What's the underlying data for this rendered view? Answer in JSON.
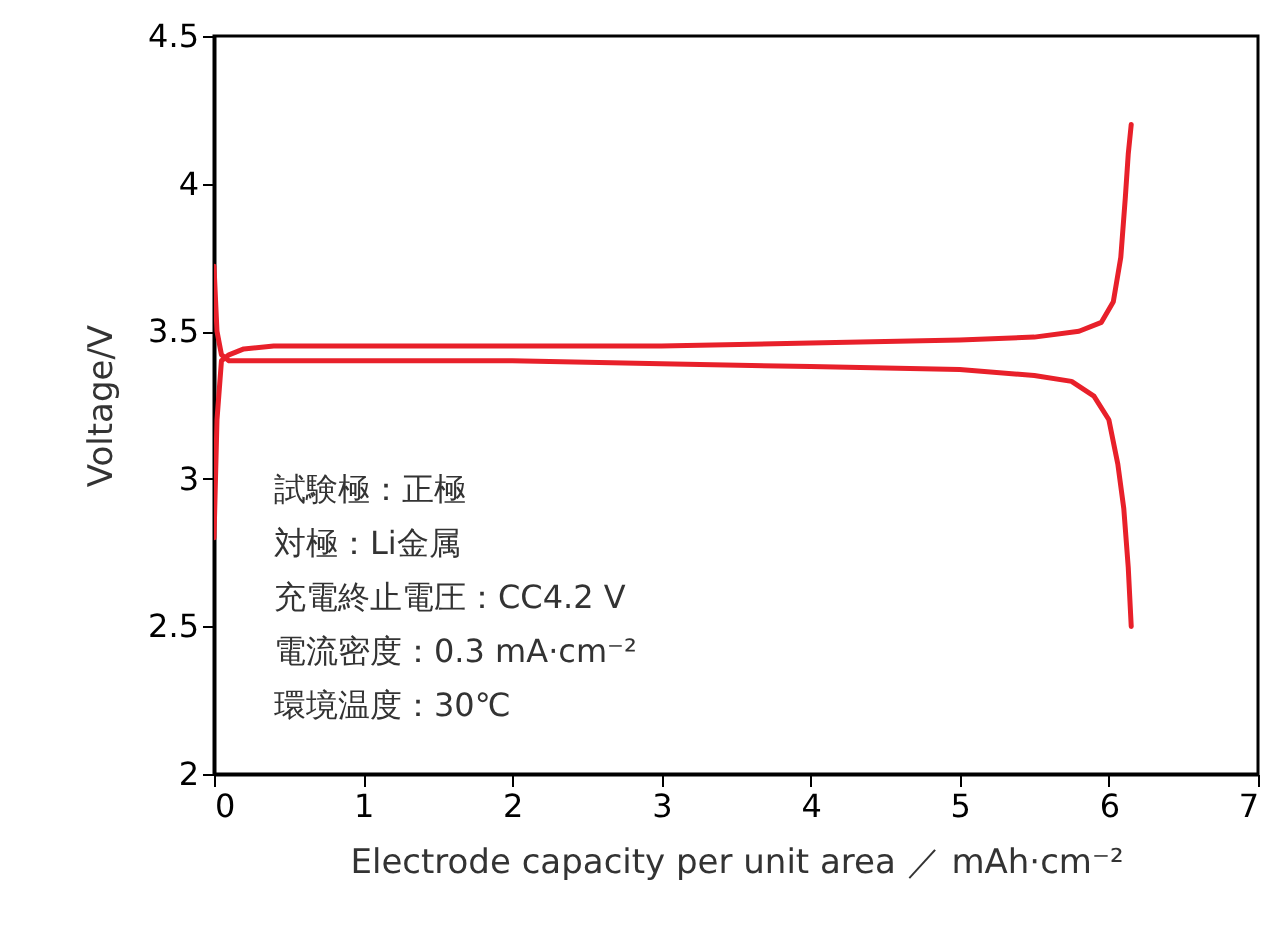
{
  "chart_data": {
    "type": "line",
    "xlabel": "Electrode capacity per unit area ／ mAh·cm⁻²",
    "ylabel": "Voltage/V",
    "xlim": [
      0,
      7
    ],
    "xticks": [
      0,
      1,
      2,
      3,
      4,
      5,
      6,
      7
    ],
    "ylim": [
      2,
      4.5
    ],
    "yticks": [
      2,
      2.5,
      3,
      3.5,
      4,
      4.5
    ],
    "grid": false,
    "line_style": "solid",
    "marker": "none",
    "series": [
      {
        "color": "#e8202a",
        "x": [
          0,
          0.02,
          0.05,
          0.1,
          0.2,
          0.4,
          1,
          2,
          3,
          4,
          5,
          5.5,
          5.8,
          5.95,
          6.03,
          6.08,
          6.11,
          6.13,
          6.15
        ],
        "values": [
          2.8,
          3.2,
          3.4,
          3.42,
          3.44,
          3.45,
          3.45,
          3.45,
          3.45,
          3.46,
          3.47,
          3.48,
          3.5,
          3.53,
          3.6,
          3.75,
          3.95,
          4.1,
          4.2
        ]
      },
      {
        "color": "#e8202a",
        "x": [
          0,
          0.02,
          0.05,
          0.1,
          0.3,
          1,
          2,
          3,
          4,
          5,
          5.5,
          5.75,
          5.9,
          6.0,
          6.06,
          6.1,
          6.13,
          6.15
        ],
        "values": [
          3.72,
          3.5,
          3.42,
          3.4,
          3.4,
          3.4,
          3.4,
          3.39,
          3.38,
          3.37,
          3.35,
          3.33,
          3.28,
          3.2,
          3.05,
          2.9,
          2.7,
          2.5
        ]
      }
    ],
    "annotations": [
      "試験極：正極",
      "対極：Li金属",
      "充電終止電圧：CC4.2 V",
      "電流密度：0.3 mA·cm⁻²",
      "環境温度：30℃"
    ]
  }
}
